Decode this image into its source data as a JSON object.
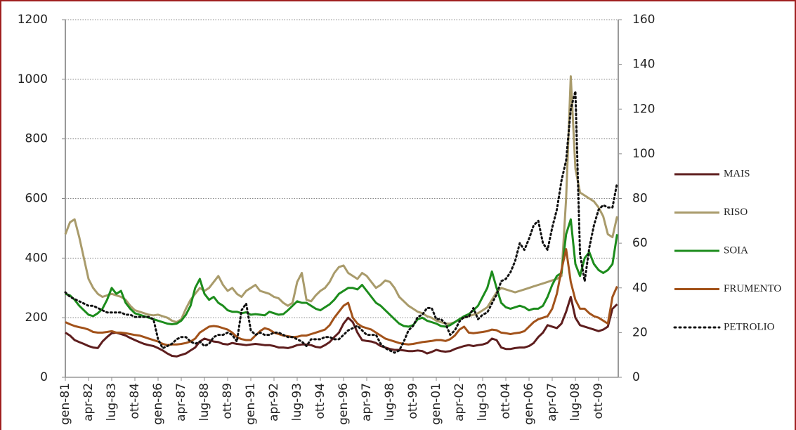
{
  "chart_data": {
    "type": "line",
    "categories": [
      "gen-81",
      null,
      null,
      null,
      null,
      "apr-82",
      null,
      null,
      null,
      null,
      "lug-83",
      null,
      null,
      null,
      null,
      "ott-84",
      null,
      null,
      null,
      null,
      "gen-86",
      null,
      null,
      null,
      null,
      "apr-87",
      null,
      null,
      null,
      null,
      "lug-88",
      null,
      null,
      null,
      null,
      "ott-89",
      null,
      null,
      null,
      null,
      "gen-91",
      null,
      null,
      null,
      null,
      "apr-92",
      null,
      null,
      null,
      null,
      "lug-93",
      null,
      null,
      null,
      null,
      "ott-94",
      null,
      null,
      null,
      null,
      "gen-96",
      null,
      null,
      null,
      null,
      "apr-97",
      null,
      null,
      null,
      null,
      "lug-98",
      null,
      null,
      null,
      null,
      "ott-99",
      null,
      null,
      null,
      null,
      "gen-01",
      null,
      null,
      null,
      null,
      "apr-02",
      null,
      null,
      null,
      null,
      "lug-03",
      null,
      null,
      null,
      null,
      "ott-04",
      null,
      null,
      null,
      null,
      "gen-06",
      null,
      null,
      null,
      null,
      "apr-07",
      null,
      null,
      null,
      null,
      "lug-08",
      null,
      null,
      null,
      null,
      "ott-09",
      null,
      null,
      null,
      null
    ],
    "series": [
      {
        "name": "MAIS",
        "color": "#5e1e1e",
        "style": "solid",
        "values": [
          150,
          140,
          125,
          118,
          112,
          105,
          100,
          98,
          120,
          135,
          148,
          150,
          145,
          140,
          132,
          125,
          118,
          112,
          108,
          105,
          98,
          90,
          80,
          72,
          70,
          75,
          80,
          90,
          100,
          120,
          130,
          125,
          120,
          118,
          112,
          110,
          115,
          112,
          110,
          108,
          110,
          112,
          110,
          108,
          108,
          105,
          100,
          100,
          98,
          102,
          108,
          110,
          110,
          108,
          102,
          100,
          108,
          118,
          135,
          150,
          180,
          200,
          185,
          150,
          125,
          122,
          120,
          115,
          105,
          100,
          95,
          92,
          92,
          90,
          88,
          88,
          90,
          88,
          80,
          85,
          92,
          88,
          86,
          88,
          95,
          100,
          105,
          108,
          105,
          108,
          110,
          115,
          130,
          125,
          100,
          95,
          95,
          98,
          100,
          100,
          105,
          115,
          135,
          150,
          175,
          170,
          165,
          180,
          220,
          270,
          200,
          175,
          170,
          165,
          160,
          155,
          160,
          170,
          230,
          245
        ]
      },
      {
        "name": "RISO",
        "color": "#a99b6b",
        "style": "solid",
        "values": [
          480,
          520,
          530,
          470,
          400,
          330,
          300,
          280,
          270,
          275,
          280,
          275,
          270,
          260,
          240,
          225,
          220,
          215,
          210,
          208,
          210,
          205,
          200,
          190,
          185,
          195,
          230,
          260,
          280,
          300,
          290,
          300,
          320,
          340,
          310,
          290,
          300,
          280,
          270,
          290,
          300,
          310,
          290,
          285,
          280,
          270,
          265,
          250,
          240,
          250,
          320,
          350,
          260,
          255,
          275,
          290,
          300,
          320,
          350,
          370,
          375,
          350,
          340,
          330,
          350,
          340,
          320,
          300,
          310,
          325,
          320,
          300,
          270,
          255,
          240,
          230,
          220,
          215,
          205,
          200,
          190,
          185,
          180,
          180,
          185,
          195,
          200,
          205,
          210,
          215,
          225,
          235,
          260,
          285,
          300,
          295,
          290,
          285,
          290,
          295,
          300,
          305,
          310,
          315,
          320,
          325,
          330,
          340,
          600,
          1010,
          700,
          620,
          610,
          600,
          590,
          570,
          540,
          480,
          470,
          540
        ]
      },
      {
        "name": "SOIA",
        "color": "#1c8c1c",
        "style": "solid",
        "values": [
          280,
          275,
          260,
          240,
          225,
          210,
          205,
          215,
          230,
          260,
          300,
          280,
          290,
          250,
          230,
          215,
          210,
          205,
          200,
          195,
          190,
          185,
          180,
          178,
          180,
          190,
          210,
          240,
          300,
          330,
          280,
          260,
          270,
          250,
          240,
          225,
          220,
          220,
          215,
          218,
          210,
          212,
          210,
          208,
          220,
          215,
          210,
          212,
          225,
          240,
          255,
          250,
          250,
          240,
          230,
          225,
          235,
          245,
          260,
          280,
          290,
          300,
          300,
          295,
          310,
          290,
          270,
          250,
          240,
          225,
          210,
          195,
          180,
          172,
          170,
          175,
          195,
          200,
          190,
          185,
          180,
          172,
          170,
          175,
          185,
          195,
          205,
          212,
          225,
          240,
          270,
          300,
          355,
          300,
          250,
          235,
          230,
          235,
          240,
          235,
          225,
          230,
          230,
          240,
          270,
          310,
          340,
          350,
          480,
          530,
          380,
          340,
          400,
          420,
          380,
          360,
          350,
          360,
          380,
          480
        ]
      },
      {
        "name": "FRUMENTO",
        "color": "#a2521a",
        "style": "solid",
        "values": [
          185,
          178,
          172,
          168,
          165,
          160,
          152,
          150,
          150,
          152,
          155,
          150,
          150,
          148,
          145,
          142,
          140,
          135,
          130,
          125,
          120,
          112,
          108,
          110,
          110,
          112,
          115,
          120,
          130,
          150,
          160,
          170,
          172,
          170,
          165,
          160,
          150,
          135,
          128,
          125,
          125,
          140,
          155,
          165,
          160,
          150,
          145,
          140,
          138,
          135,
          136,
          140,
          140,
          145,
          150,
          155,
          160,
          175,
          200,
          220,
          240,
          250,
          200,
          180,
          170,
          165,
          160,
          150,
          140,
          130,
          125,
          120,
          115,
          112,
          110,
          112,
          115,
          118,
          120,
          122,
          125,
          125,
          122,
          128,
          140,
          160,
          170,
          150,
          148,
          150,
          152,
          155,
          160,
          158,
          150,
          148,
          145,
          148,
          150,
          155,
          170,
          185,
          195,
          200,
          205,
          230,
          280,
          360,
          430,
          320,
          260,
          230,
          230,
          215,
          205,
          200,
          190,
          180,
          270,
          305
        ]
      },
      {
        "name": "PETROLIO",
        "color": "#111111",
        "style": "dotted",
        "axis": "y2",
        "values": [
          38,
          36,
          35,
          34,
          33,
          32,
          32,
          31,
          30,
          29,
          29,
          29,
          29,
          28,
          28,
          27,
          27,
          27,
          27,
          26,
          17,
          13,
          14,
          15,
          17,
          18,
          18,
          16,
          15,
          16,
          14,
          15,
          18,
          19,
          19,
          20,
          19,
          16,
          30,
          33,
          21,
          19,
          20,
          19,
          19,
          20,
          20,
          19,
          18,
          18,
          17,
          16,
          14,
          17,
          17,
          17,
          18,
          18,
          17,
          17,
          19,
          21,
          22,
          23,
          21,
          19,
          19,
          19,
          15,
          13,
          12,
          11,
          12,
          16,
          21,
          23,
          27,
          28,
          31,
          31,
          26,
          26,
          24,
          19,
          21,
          25,
          27,
          27,
          31,
          26,
          28,
          29,
          33,
          37,
          43,
          44,
          47,
          52,
          60,
          57,
          62,
          68,
          70,
          60,
          57,
          67,
          75,
          88,
          97,
          120,
          128,
          55,
          43,
          58,
          68,
          75,
          77,
          76,
          76,
          87
        ]
      }
    ],
    "ylim": [
      0,
      1200
    ],
    "yticks": [
      0,
      200,
      400,
      600,
      800,
      1000,
      1200
    ],
    "y2lim": [
      0,
      160
    ],
    "y2ticks": [
      0,
      20,
      40,
      60,
      80,
      100,
      120,
      140,
      160
    ],
    "grid": true,
    "legend": "right"
  }
}
